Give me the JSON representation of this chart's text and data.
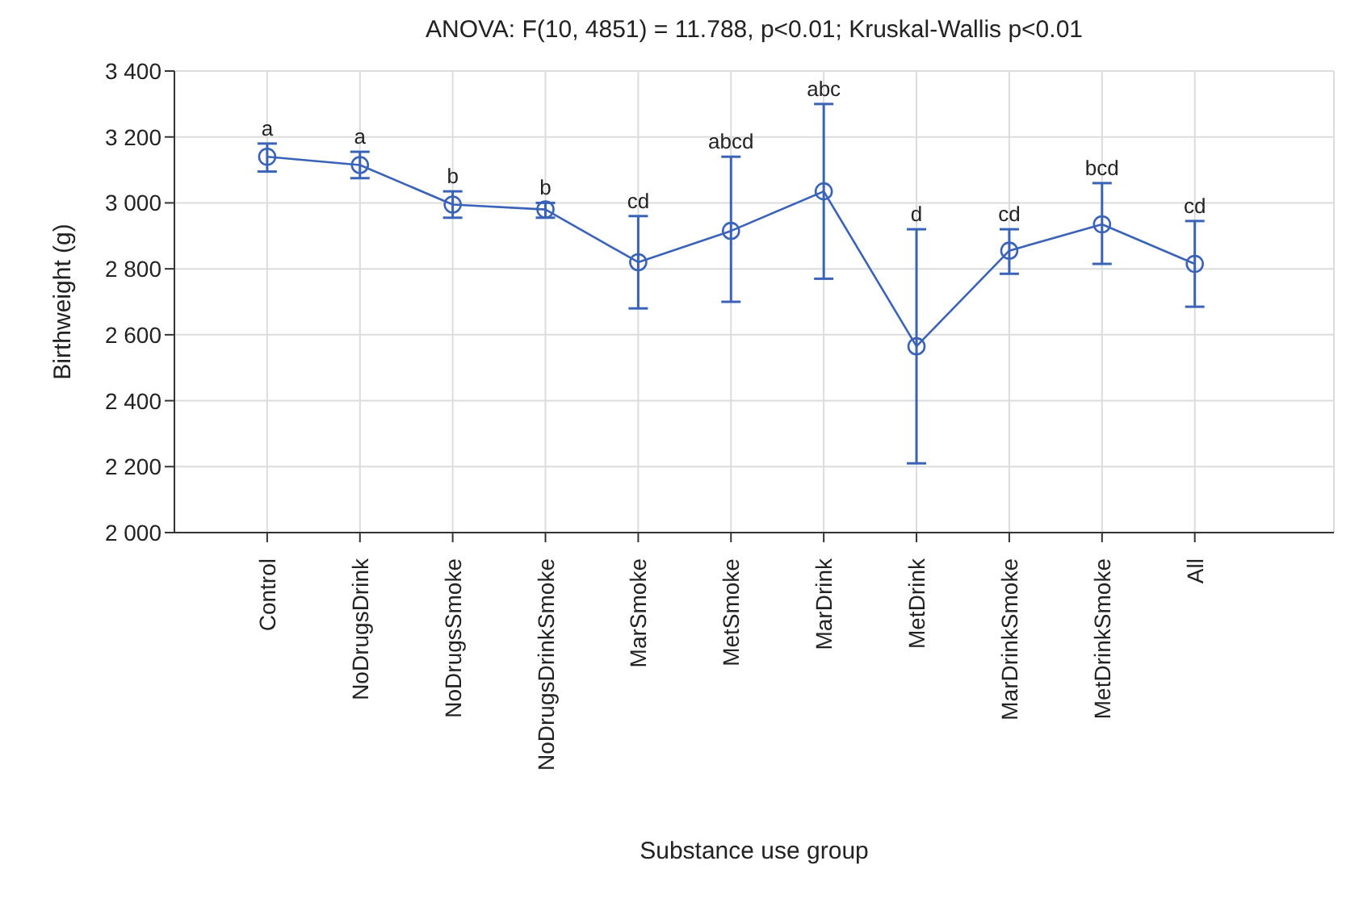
{
  "chart_data": {
    "type": "line",
    "title": "ANOVA: F(10, 4851) = 11.788, p<0.01; Kruskal-Wallis p<0.01",
    "xlabel": "Substance use group",
    "ylabel": "Birthweight (g)",
    "categories": [
      "Control",
      "NoDrugsDrink",
      "NoDrugsSmoke",
      "NoDrugsDrinkSmoke",
      "MarSmoke",
      "MetSmoke",
      "MarDrink",
      "MetDrink",
      "MarDrinkSmoke",
      "MetDrinkSmoke",
      "All"
    ],
    "series": [
      {
        "color": "#3a63b8",
        "values": [
          3140,
          3115,
          2995,
          2980,
          2820,
          2915,
          3035,
          2565,
          2855,
          2935,
          2815
        ],
        "errors": [
          [
            3095,
            3180
          ],
          [
            3075,
            3155
          ],
          [
            2955,
            3035
          ],
          [
            2955,
            3000
          ],
          [
            2680,
            2960
          ],
          [
            2700,
            3140
          ],
          [
            2770,
            3300
          ],
          [
            2210,
            2920
          ],
          [
            2785,
            2920
          ],
          [
            2815,
            3060
          ],
          [
            2685,
            2945
          ]
        ]
      }
    ],
    "ylim": [
      2000,
      3400
    ],
    "yticks": [
      {
        "value": 2000,
        "label": "2 000"
      },
      {
        "value": 2200,
        "label": "2 200"
      },
      {
        "value": 2400,
        "label": "2 400"
      },
      {
        "value": 2600,
        "label": "2 600"
      },
      {
        "value": 2800,
        "label": "2 800"
      },
      {
        "value": 3000,
        "label": "3 000"
      },
      {
        "value": 3200,
        "label": "3 200"
      },
      {
        "value": 3400,
        "label": "3 400"
      }
    ],
    "grid": true,
    "marker": "circle",
    "line_style": "solid",
    "annotations": [
      {
        "text": "a",
        "x": "Control",
        "y": 3180
      },
      {
        "text": "a",
        "x": "NoDrugsDrink",
        "y": 3155
      },
      {
        "text": "b",
        "x": "NoDrugsSmoke",
        "y": 3035
      },
      {
        "text": "b",
        "x": "NoDrugsDrinkSmoke",
        "y": 3000
      },
      {
        "text": "cd",
        "x": "MarSmoke",
        "y": 2960
      },
      {
        "text": "abcd",
        "x": "MetSmoke",
        "y": 3140
      },
      {
        "text": "abc",
        "x": "MarDrink",
        "y": 3300
      },
      {
        "text": "d",
        "x": "MetDrink",
        "y": 2920
      },
      {
        "text": "cd",
        "x": "MarDrinkSmoke",
        "y": 2920
      },
      {
        "text": "bcd",
        "x": "MetDrinkSmoke",
        "y": 3060
      },
      {
        "text": "cd",
        "x": "All",
        "y": 2945
      }
    ]
  }
}
